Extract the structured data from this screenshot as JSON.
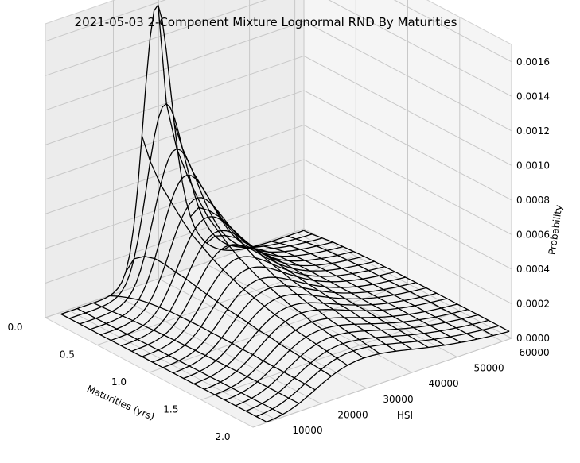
{
  "chart_data": {
    "type": "surface-wireframe",
    "title": "2021-05-03 2-Component Mixture Lognormal RND By Maturities",
    "x_axis": {
      "label": "Maturities (yrs)",
      "ticks": [
        "0.0",
        "0.5",
        "1.0",
        "1.5",
        "2.0"
      ],
      "range": [
        0,
        2
      ]
    },
    "y_axis": {
      "label": "HSI",
      "ticks": [
        "10000",
        "20000",
        "30000",
        "40000",
        "50000",
        "60000"
      ],
      "range": [
        5000,
        62000
      ]
    },
    "z_axis": {
      "label": "Probability",
      "ticks": [
        "0.0000",
        "0.0002",
        "0.0004",
        "0.0006",
        "0.0008",
        "0.0010",
        "0.0012",
        "0.0014",
        "0.0016"
      ],
      "range": [
        0,
        0.0017
      ]
    },
    "maturities": [
      0.02,
      0.1,
      0.2,
      0.3,
      0.4,
      0.5,
      0.6,
      0.7,
      0.8,
      0.9,
      1.0,
      1.1,
      1.2,
      1.3,
      1.4,
      1.5,
      1.6,
      1.7,
      1.8,
      1.9,
      2.0
    ],
    "peak_density_approx": [
      0.0016,
      0.00105,
      0.00082,
      0.0007,
      0.0006,
      0.00052,
      0.00047,
      0.00042,
      0.00038,
      0.00035,
      0.00032,
      0.0003,
      0.00028,
      0.00026,
      0.00025,
      0.00023,
      0.00022,
      0.00021,
      0.0002,
      0.00019,
      0.00018
    ],
    "mode_hsi_approx": 29000,
    "grid": true,
    "line_color": "#000000"
  }
}
